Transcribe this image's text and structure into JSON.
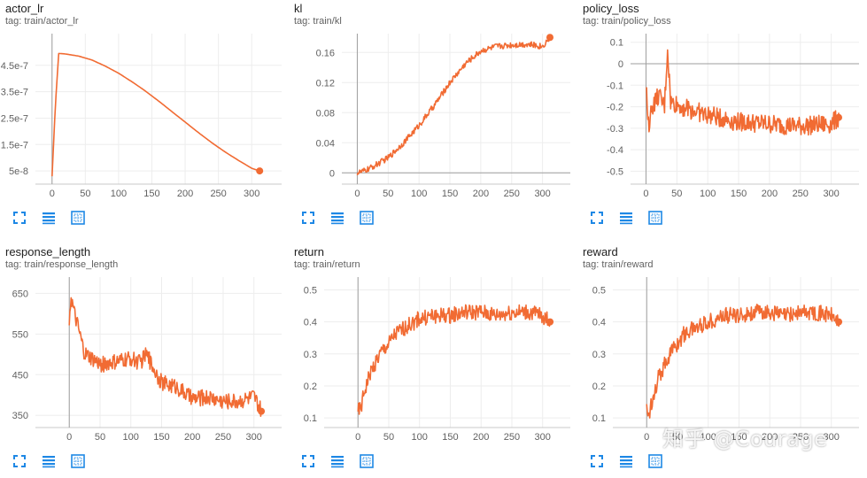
{
  "accent": "#f16b33",
  "watermark": "知乎 @Courage",
  "icons": [
    "expand-icon",
    "data-table-icon",
    "fit-domain-icon"
  ],
  "chart_data": [
    {
      "type": "line",
      "title": "actor_lr",
      "tag": "tag: train/actor_lr",
      "xlim": [
        -25,
        345
      ],
      "ylim": [
        0,
        5.7e-07
      ],
      "xticks": [
        0,
        50,
        100,
        150,
        200,
        250,
        300
      ],
      "yticks": [
        5e-08,
        1.5e-07,
        2.5e-07,
        3.5e-07,
        4.5e-07
      ],
      "ytick_labels": [
        "5e-8",
        "1.5e-7",
        "2.5e-7",
        "3.5e-7",
        "4.5e-7"
      ],
      "zero_y": false,
      "x": [
        0,
        5,
        10,
        20,
        40,
        60,
        80,
        100,
        120,
        140,
        160,
        180,
        200,
        220,
        240,
        260,
        280,
        300,
        312
      ],
      "y": [
        3e-08,
        3e-07,
        4.95e-07,
        4.93e-07,
        4.85e-07,
        4.7e-07,
        4.47e-07,
        4.2e-07,
        3.88e-07,
        3.53e-07,
        3.15e-07,
        2.75e-07,
        2.35e-07,
        1.95e-07,
        1.57e-07,
        1.22e-07,
        9e-08,
        6e-08,
        5e-08
      ],
      "noise": 0
    },
    {
      "type": "line",
      "title": "kl",
      "tag": "tag: train/kl",
      "xlim": [
        -25,
        345
      ],
      "ylim": [
        -0.015,
        0.185
      ],
      "xticks": [
        0,
        50,
        100,
        150,
        200,
        250,
        300
      ],
      "yticks": [
        0,
        0.04,
        0.08,
        0.12,
        0.16
      ],
      "ytick_labels": [
        "0",
        "0.04",
        "0.08",
        "0.12",
        "0.16"
      ],
      "zero_y": true,
      "x": [
        0,
        10,
        25,
        50,
        75,
        100,
        125,
        150,
        175,
        200,
        225,
        250,
        275,
        300,
        312
      ],
      "y": [
        0,
        0.002,
        0.008,
        0.02,
        0.04,
        0.063,
        0.09,
        0.12,
        0.145,
        0.162,
        0.168,
        0.17,
        0.171,
        0.168,
        0.18
      ],
      "noise": 0.004
    },
    {
      "type": "line",
      "title": "policy_loss",
      "tag": "tag: train/policy_loss",
      "xlim": [
        -25,
        345
      ],
      "ylim": [
        -0.56,
        0.14
      ],
      "xticks": [
        0,
        50,
        100,
        150,
        200,
        250,
        300
      ],
      "yticks": [
        0.1,
        0,
        -0.1,
        -0.2,
        -0.3,
        -0.4,
        -0.5
      ],
      "ytick_labels": [
        "0.1",
        "0",
        "-0.1",
        "-0.2",
        "-0.3",
        "-0.4",
        "-0.5"
      ],
      "zero_y": true,
      "x": [
        0,
        5,
        10,
        20,
        30,
        35,
        40,
        60,
        80,
        100,
        150,
        200,
        250,
        300,
        312
      ],
      "y": [
        -0.12,
        -0.28,
        -0.2,
        -0.15,
        -0.2,
        0.07,
        -0.18,
        -0.2,
        -0.22,
        -0.24,
        -0.27,
        -0.28,
        -0.29,
        -0.28,
        -0.25
      ],
      "noise": 0.045
    },
    {
      "type": "line",
      "title": "response_length",
      "tag": "tag: train/response_length",
      "xlim": [
        -55,
        345
      ],
      "ylim": [
        320,
        690
      ],
      "xticks": [
        0,
        50,
        100,
        150,
        200,
        250,
        300
      ],
      "yticks": [
        350,
        450,
        550,
        650
      ],
      "ytick_labels": [
        "350",
        "450",
        "550",
        "650"
      ],
      "zero_y": false,
      "x": [
        0,
        3,
        8,
        15,
        25,
        50,
        75,
        100,
        115,
        125,
        150,
        175,
        200,
        225,
        250,
        275,
        300,
        312
      ],
      "y": [
        590,
        640,
        600,
        560,
        500,
        475,
        480,
        490,
        480,
        500,
        430,
        420,
        390,
        395,
        385,
        385,
        395,
        360
      ],
      "noise": 20
    },
    {
      "type": "line",
      "title": "return",
      "tag": "tag: train/return",
      "xlim": [
        -55,
        345
      ],
      "ylim": [
        0.07,
        0.54
      ],
      "xticks": [
        0,
        50,
        100,
        150,
        200,
        250,
        300
      ],
      "yticks": [
        0.1,
        0.2,
        0.3,
        0.4,
        0.5
      ],
      "ytick_labels": [
        "0.1",
        "0.2",
        "0.3",
        "0.4",
        "0.5"
      ],
      "zero_y": false,
      "x": [
        0,
        5,
        10,
        20,
        30,
        40,
        50,
        60,
        75,
        100,
        125,
        150,
        175,
        200,
        225,
        250,
        275,
        300,
        312
      ],
      "y": [
        0.12,
        0.13,
        0.18,
        0.24,
        0.28,
        0.31,
        0.33,
        0.36,
        0.38,
        0.41,
        0.42,
        0.42,
        0.43,
        0.43,
        0.42,
        0.43,
        0.43,
        0.42,
        0.4
      ],
      "noise": 0.025
    },
    {
      "type": "line",
      "title": "reward",
      "tag": "tag: train/reward",
      "xlim": [
        -55,
        345
      ],
      "ylim": [
        0.07,
        0.54
      ],
      "xticks": [
        0,
        50,
        100,
        150,
        200,
        250,
        300
      ],
      "yticks": [
        0.1,
        0.2,
        0.3,
        0.4,
        0.5
      ],
      "ytick_labels": [
        "0.1",
        "0.2",
        "0.3",
        "0.4",
        "0.5"
      ],
      "zero_y": false,
      "x": [
        0,
        5,
        10,
        20,
        30,
        40,
        50,
        60,
        75,
        100,
        125,
        150,
        175,
        200,
        225,
        250,
        275,
        300,
        312
      ],
      "y": [
        0.12,
        0.12,
        0.17,
        0.23,
        0.27,
        0.31,
        0.33,
        0.36,
        0.38,
        0.4,
        0.42,
        0.42,
        0.43,
        0.43,
        0.42,
        0.43,
        0.43,
        0.42,
        0.4
      ],
      "noise": 0.025
    }
  ]
}
